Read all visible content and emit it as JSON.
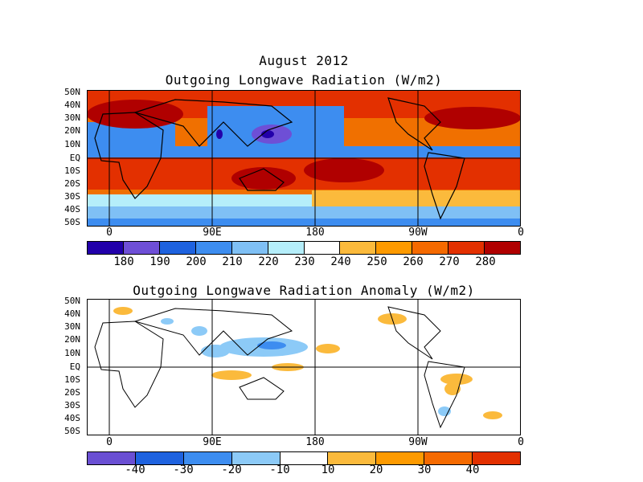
{
  "page_title": "August 2012",
  "maps": [
    {
      "title": "Outgoing Longwave Radiation (W/m2)",
      "lat_labels": [
        "50N",
        "40N",
        "30N",
        "20N",
        "10N",
        "EQ",
        "10S",
        "20S",
        "30S",
        "40S",
        "50S"
      ],
      "lon_labels": [
        "0",
        "90E",
        "180",
        "90W",
        "0"
      ],
      "colorbar": {
        "colors": [
          "#2200aa",
          "#6e4fd6",
          "#1e62df",
          "#3d8df0",
          "#7fc0f5",
          "#b5eefa",
          "#ffffff",
          "#fbba3c",
          "#fd9a00",
          "#f56a00",
          "#e33000",
          "#b00000"
        ],
        "labels": [
          "180",
          "190",
          "200",
          "210",
          "220",
          "230",
          "240",
          "250",
          "260",
          "270",
          "280"
        ]
      }
    },
    {
      "title": "Outgoing Longwave Radiation Anomaly (W/m2)",
      "lat_labels": [
        "50N",
        "40N",
        "30N",
        "20N",
        "10N",
        "EQ",
        "10S",
        "20S",
        "30S",
        "40S",
        "50S"
      ],
      "lon_labels": [
        "0",
        "90E",
        "180",
        "90W",
        "0"
      ],
      "colorbar": {
        "colors": [
          "#6a4fd3",
          "#1e62df",
          "#3d8df0",
          "#8ccaf7",
          "#ffffff",
          "#fbba3c",
          "#fd9a00",
          "#f56a00",
          "#e33000"
        ],
        "labels": [
          "-40",
          "-30",
          "-20",
          "-10",
          "10",
          "20",
          "30",
          "40"
        ]
      }
    }
  ]
}
